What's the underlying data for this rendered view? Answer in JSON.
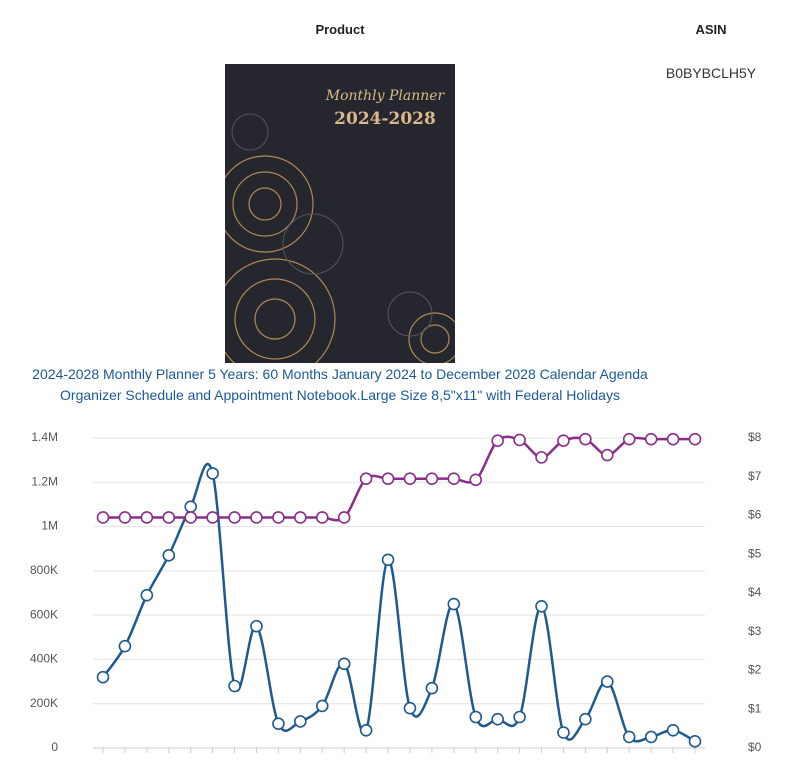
{
  "header": {
    "product": "Product",
    "asin": "ASIN"
  },
  "row": {
    "asin": "B0BYBCLH5Y",
    "image": {
      "title": "Monthly Planner",
      "years": "2024-2028"
    },
    "title": "2024-2028 Monthly Planner 5 Years: 60 Months January 2024 to December 2028 Calendar Agenda Organizer Schedule and Appointment Notebook.Large Size 8,5\"x11\" with Federal Holidays"
  },
  "chart_data": {
    "type": "line",
    "categories": [
      null,
      null,
      null,
      null,
      null,
      null,
      null,
      null,
      null,
      null,
      null,
      null,
      null,
      null,
      null,
      null,
      null,
      null,
      null,
      null,
      null,
      null,
      null,
      null,
      null,
      null,
      null,
      null
    ],
    "series": [
      {
        "name": null,
        "color": "#1f5a8f",
        "axis": "y",
        "values": [
          320000,
          460000,
          690000,
          870000,
          1090000,
          1240000,
          280000,
          550000,
          110000,
          120000,
          190000,
          380000,
          80000,
          850000,
          180000,
          270000,
          650000,
          140000,
          130000,
          140000,
          640000,
          70000,
          130000,
          300000,
          50000,
          50000,
          80000,
          30000
        ]
      },
      {
        "name": null,
        "color": "#8b2d8b",
        "axis": "y2",
        "values": [
          5.95,
          5.95,
          5.95,
          5.95,
          5.95,
          5.95,
          5.95,
          5.95,
          5.95,
          5.95,
          5.95,
          5.95,
          6.95,
          6.95,
          6.95,
          6.95,
          6.95,
          6.92,
          7.93,
          7.95,
          7.5,
          7.93,
          7.97,
          7.56,
          7.97,
          7.97,
          7.97,
          7.97
        ]
      }
    ],
    "ylim": [
      0,
      1400000
    ],
    "yticks": [
      0,
      {
        "value": 200000,
        "label": "200K"
      },
      {
        "value": 400000,
        "label": "400K"
      },
      {
        "value": 600000,
        "label": "600K"
      },
      {
        "value": 800000,
        "label": "800K"
      },
      {
        "value": 1000000,
        "label": "1M"
      },
      {
        "value": 1200000,
        "label": "1.2M"
      },
      {
        "value": 1400000,
        "label": "1.4M"
      }
    ],
    "y2lim": [
      0,
      8
    ],
    "y2ticks": [
      {
        "value": 0,
        "label": "$0"
      },
      {
        "value": 1,
        "label": "$1"
      },
      {
        "value": 2,
        "label": "$2"
      },
      {
        "value": 3,
        "label": "$3"
      },
      {
        "value": 4,
        "label": "$4"
      },
      {
        "value": 5,
        "label": "$5"
      },
      {
        "value": 6,
        "label": "$6"
      },
      {
        "value": 7,
        "label": "$7"
      },
      {
        "value": 8,
        "label": "$8"
      }
    ],
    "grid": true
  }
}
